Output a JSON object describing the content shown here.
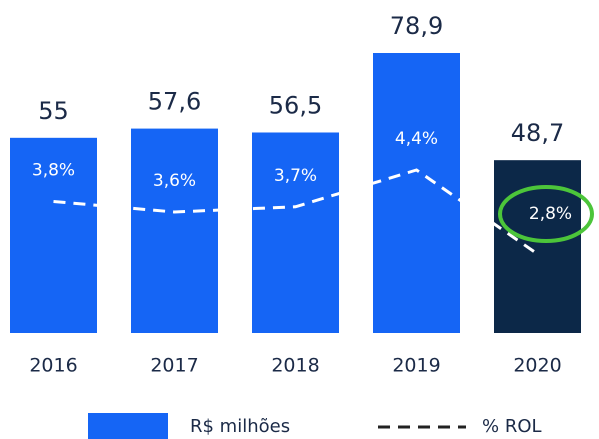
{
  "chart_data": {
    "type": "bar",
    "categories": [
      "2016",
      "2017",
      "2018",
      "2019",
      "2020"
    ],
    "series": [
      {
        "name": "R$ milhões",
        "type": "bar",
        "color": "#1565f5",
        "bar_colors": [
          "#1565f5",
          "#1565f5",
          "#1565f5",
          "#1565f5",
          "#0c2848"
        ],
        "values": [
          55,
          57.6,
          56.5,
          78.9,
          48.7
        ],
        "value_labels": [
          "55",
          "57,6",
          "56,5",
          "78,9",
          "48,7"
        ]
      },
      {
        "name": "% ROL",
        "type": "line",
        "color": "#ffffff",
        "legend_color": "#222222",
        "dashed": true,
        "values": [
          3.8,
          3.6,
          3.7,
          4.4,
          2.8
        ],
        "value_labels": [
          "3,8%",
          "3,6%",
          "3,7%",
          "4,4%",
          "2,8%"
        ]
      }
    ]
  }
}
